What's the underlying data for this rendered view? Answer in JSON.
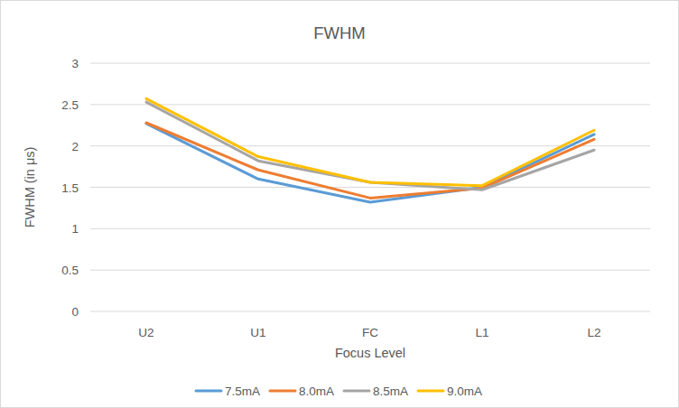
{
  "chart_data": {
    "type": "line",
    "title": "FWHM",
    "x_label": "Focus Level",
    "y_label": "FWHM (in μs)",
    "categories": [
      "U2",
      "U1",
      "FC",
      "L1",
      "L2"
    ],
    "series": [
      {
        "name": "7.5mA",
        "color": "#5b9bd5",
        "values": [
          2.27,
          1.6,
          1.32,
          1.5,
          2.14
        ]
      },
      {
        "name": "8.0mA",
        "color": "#ed7d31",
        "values": [
          2.28,
          1.71,
          1.37,
          1.49,
          2.08
        ]
      },
      {
        "name": "8.5mA",
        "color": "#a5a5a5",
        "values": [
          2.53,
          1.82,
          1.56,
          1.47,
          1.95
        ]
      },
      {
        "name": "9.0mA",
        "color": "#ffc000",
        "values": [
          2.57,
          1.87,
          1.56,
          1.52,
          2.19
        ]
      }
    ],
    "ylim": [
      0,
      3
    ],
    "yticks": [
      0,
      0.5,
      1,
      1.5,
      2,
      2.5,
      3
    ],
    "grid": true,
    "legend": "bottom"
  }
}
